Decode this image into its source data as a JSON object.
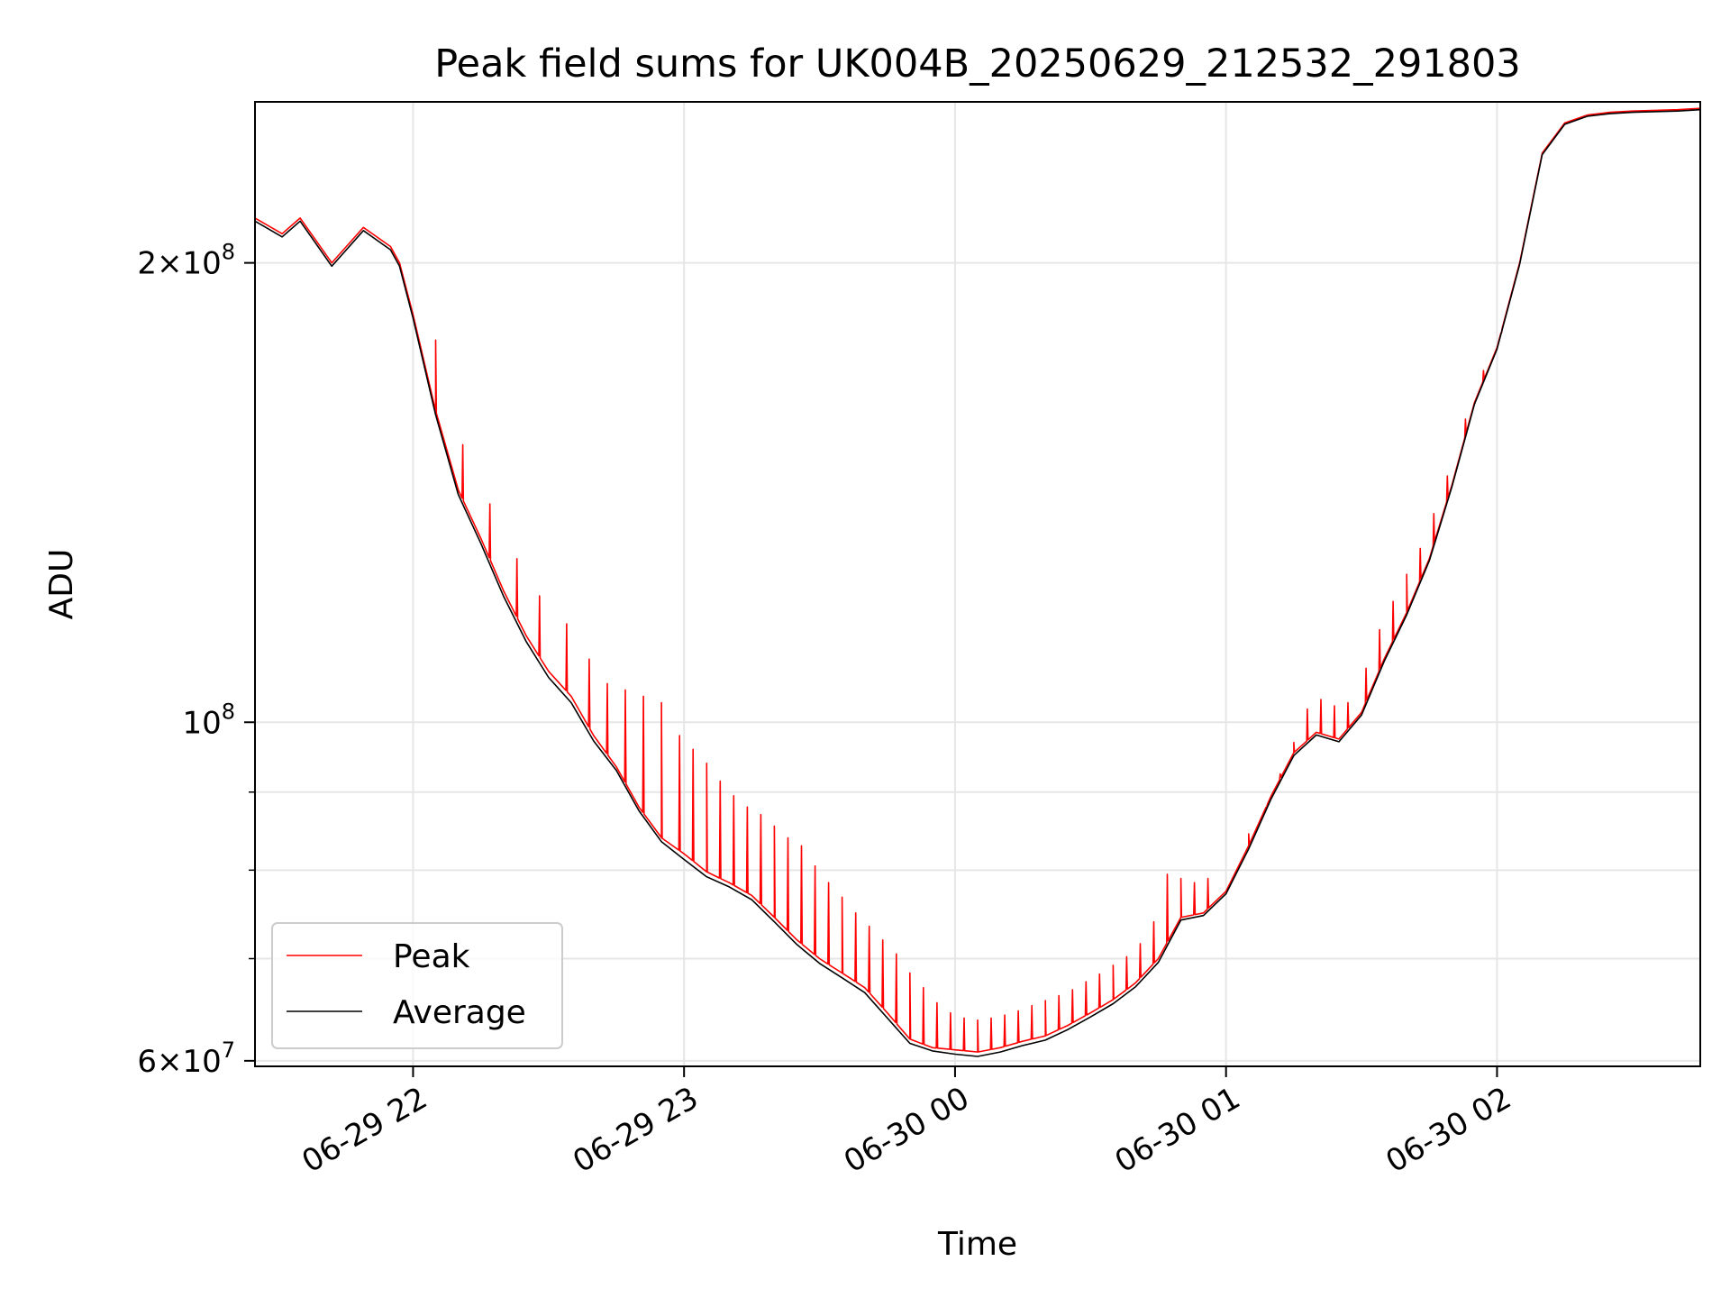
{
  "chart_data": {
    "type": "line",
    "title": "Peak field sums for UK004B_20250629_212532_291803",
    "xlabel": "Time",
    "ylabel": "ADU",
    "y_scale": "log",
    "ylim": [
      59500000,
      255000000
    ],
    "xlim": [
      "06-29 21:25",
      "06-30 02:45"
    ],
    "grid": true,
    "legend_position": "lower-left",
    "x_ticks": [
      {
        "t": "06-29 22:00",
        "label": "06-29 22"
      },
      {
        "t": "06-29 23:00",
        "label": "06-29 23"
      },
      {
        "t": "06-30 00:00",
        "label": "06-30 00"
      },
      {
        "t": "06-30 01:00",
        "label": "06-30 01"
      },
      {
        "t": "06-30 02:00",
        "label": "06-30 02"
      }
    ],
    "y_major_ticks": [
      {
        "value": 60000000,
        "base": "6",
        "exp": "7"
      },
      {
        "value": 100000000,
        "base": "",
        "exp": "8"
      },
      {
        "value": 200000000,
        "base": "2",
        "exp": "8"
      }
    ],
    "y_minor_ticks": [
      70000000,
      80000000,
      90000000
    ],
    "series": [
      {
        "name": "Peak",
        "color": "#ff0000",
        "times": [
          "06-29 21:25",
          "06-29 21:31",
          "06-29 21:35",
          "06-29 21:42",
          "06-29 21:49",
          "06-29 21:55",
          "06-29 21:57",
          "06-29 22:00",
          "06-29 22:05",
          "06-29 22:10",
          "06-29 22:15",
          "06-29 22:20",
          "06-29 22:25",
          "06-29 22:30",
          "06-29 22:35",
          "06-29 22:40",
          "06-29 22:45",
          "06-29 22:50",
          "06-29 22:55",
          "06-29 23:00",
          "06-29 23:05",
          "06-29 23:10",
          "06-29 23:15",
          "06-29 23:20",
          "06-29 23:25",
          "06-29 23:30",
          "06-29 23:35",
          "06-29 23:40",
          "06-29 23:45",
          "06-29 23:50",
          "06-29 23:55",
          "06-30 00:00",
          "06-30 00:05",
          "06-30 00:10",
          "06-30 00:15",
          "06-30 00:20",
          "06-30 00:25",
          "06-30 00:30",
          "06-30 00:35",
          "06-30 00:40",
          "06-30 00:45",
          "06-30 00:50",
          "06-30 00:55",
          "06-30 01:00",
          "06-30 01:05",
          "06-30 01:10",
          "06-30 01:15",
          "06-30 01:20",
          "06-30 01:25",
          "06-30 01:30",
          "06-30 01:35",
          "06-30 01:40",
          "06-30 01:45",
          "06-30 01:50",
          "06-30 01:55",
          "06-30 02:00",
          "06-30 02:05",
          "06-30 02:10",
          "06-30 02:15",
          "06-30 02:20",
          "06-30 02:25",
          "06-30 02:30",
          "06-30 02:40",
          "06-30 02:45"
        ],
        "values": [
          214000000,
          209000000,
          214000000,
          200000000,
          211000000,
          205000000,
          200000000,
          185000000,
          160000000,
          142000000,
          132000000,
          122000000,
          114000000,
          108000000,
          104000000,
          98000000,
          93500000,
          88000000,
          84000000,
          82000000,
          79800000,
          78500000,
          77000000,
          74500000,
          72000000,
          70000000,
          68500000,
          67000000,
          64500000,
          62000000,
          61200000,
          61000000,
          60800000,
          61200000,
          61800000,
          62300000,
          63300000,
          64500000,
          65800000,
          67500000,
          70000000,
          74500000,
          75000000,
          77500000,
          83000000,
          89500000,
          95500000,
          98500000,
          97500000,
          101500000,
          110000000,
          118000000,
          128000000,
          143000000,
          162000000,
          176000000,
          200000000,
          236000000,
          247000000,
          250000000,
          251000000,
          251500000,
          252000000,
          252500000
        ],
        "spikes": [
          [
            "06-29 22:05",
            178000000
          ],
          [
            "06-29 22:11",
            152000000
          ],
          [
            "06-29 22:17",
            139000000
          ],
          [
            "06-29 22:23",
            128000000
          ],
          [
            "06-29 22:28",
            121000000
          ],
          [
            "06-29 22:34",
            116000000
          ],
          [
            "06-29 22:39",
            110000000
          ],
          [
            "06-29 22:43",
            106000000
          ],
          [
            "06-29 22:47",
            105000000
          ],
          [
            "06-29 22:51",
            104000000
          ],
          [
            "06-29 22:55",
            103000000
          ],
          [
            "06-29 22:59",
            98000000
          ],
          [
            "06-29 23:02",
            96000000
          ],
          [
            "06-29 23:05",
            94000000
          ],
          [
            "06-29 23:08",
            91500000
          ],
          [
            "06-29 23:11",
            89500000
          ],
          [
            "06-29 23:14",
            88000000
          ],
          [
            "06-29 23:17",
            87000000
          ],
          [
            "06-29 23:20",
            85500000
          ],
          [
            "06-29 23:23",
            84000000
          ],
          [
            "06-29 23:26",
            83000000
          ],
          [
            "06-29 23:29",
            80500000
          ],
          [
            "06-29 23:32",
            78500000
          ],
          [
            "06-29 23:35",
            76800000
          ],
          [
            "06-29 23:38",
            75000000
          ],
          [
            "06-29 23:41",
            73500000
          ],
          [
            "06-29 23:44",
            72000000
          ],
          [
            "06-29 23:47",
            70500000
          ],
          [
            "06-29 23:50",
            68500000
          ],
          [
            "06-29 23:53",
            67000000
          ],
          [
            "06-29 23:56",
            65500000
          ],
          [
            "06-29 23:59",
            64500000
          ],
          [
            "06-30 00:02",
            64000000
          ],
          [
            "06-30 00:05",
            63800000
          ],
          [
            "06-30 00:08",
            64000000
          ],
          [
            "06-30 00:11",
            64300000
          ],
          [
            "06-30 00:14",
            64700000
          ],
          [
            "06-30 00:17",
            65200000
          ],
          [
            "06-30 00:20",
            65700000
          ],
          [
            "06-30 00:23",
            66200000
          ],
          [
            "06-30 00:26",
            66800000
          ],
          [
            "06-30 00:29",
            67600000
          ],
          [
            "06-30 00:32",
            68400000
          ],
          [
            "06-30 00:35",
            69300000
          ],
          [
            "06-30 00:38",
            70200000
          ],
          [
            "06-30 00:41",
            71600000
          ],
          [
            "06-30 00:44",
            74000000
          ],
          [
            "06-30 00:47",
            79500000
          ],
          [
            "06-30 00:50",
            79000000
          ],
          [
            "06-30 00:53",
            78500000
          ],
          [
            "06-30 00:56",
            79000000
          ],
          [
            "06-30 01:05",
            84500000
          ],
          [
            "06-30 01:09",
            88000000
          ],
          [
            "06-30 01:12",
            92500000
          ],
          [
            "06-30 01:15",
            97000000
          ],
          [
            "06-30 01:18",
            102000000
          ],
          [
            "06-30 01:21",
            103500000
          ],
          [
            "06-30 01:24",
            102500000
          ],
          [
            "06-30 01:27",
            103000000
          ],
          [
            "06-30 01:31",
            108500000
          ],
          [
            "06-30 01:34",
            115000000
          ],
          [
            "06-30 01:37",
            120000000
          ],
          [
            "06-30 01:40",
            125000000
          ],
          [
            "06-30 01:43",
            130000000
          ],
          [
            "06-30 01:46",
            137000000
          ],
          [
            "06-30 01:49",
            145000000
          ],
          [
            "06-30 01:53",
            158000000
          ],
          [
            "06-30 01:57",
            170000000
          ],
          [
            "06-30 02:01",
            180000000
          ]
        ]
      },
      {
        "name": "Average",
        "color": "#000000",
        "times": [
          "06-29 21:25",
          "06-29 21:31",
          "06-29 21:35",
          "06-29 21:42",
          "06-29 21:49",
          "06-29 21:55",
          "06-29 21:57",
          "06-29 22:00",
          "06-29 22:05",
          "06-29 22:10",
          "06-29 22:15",
          "06-29 22:20",
          "06-29 22:25",
          "06-29 22:30",
          "06-29 22:35",
          "06-29 22:40",
          "06-29 22:45",
          "06-29 22:50",
          "06-29 22:55",
          "06-29 23:00",
          "06-29 23:05",
          "06-29 23:10",
          "06-29 23:15",
          "06-29 23:20",
          "06-29 23:25",
          "06-29 23:30",
          "06-29 23:35",
          "06-29 23:40",
          "06-29 23:45",
          "06-29 23:50",
          "06-29 23:55",
          "06-30 00:00",
          "06-30 00:05",
          "06-30 00:10",
          "06-30 00:15",
          "06-30 00:20",
          "06-30 00:25",
          "06-30 00:30",
          "06-30 00:35",
          "06-30 00:40",
          "06-30 00:45",
          "06-30 00:50",
          "06-30 00:55",
          "06-30 01:00",
          "06-30 01:05",
          "06-30 01:10",
          "06-30 01:15",
          "06-30 01:20",
          "06-30 01:25",
          "06-30 01:30",
          "06-30 01:35",
          "06-30 01:40",
          "06-30 01:45",
          "06-30 01:50",
          "06-30 01:55",
          "06-30 02:00",
          "06-30 02:05",
          "06-30 02:10",
          "06-30 02:15",
          "06-30 02:20",
          "06-30 02:25",
          "06-30 02:30",
          "06-30 02:40",
          "06-30 02:45"
        ],
        "values": [
          213000000,
          208000000,
          213000000,
          199000000,
          210000000,
          204000000,
          199000000,
          184000000,
          159000000,
          141000000,
          131000000,
          121000000,
          113000000,
          107000000,
          103000000,
          97200000,
          93000000,
          87500000,
          83500000,
          81300000,
          79200000,
          78000000,
          76500000,
          74000000,
          71500000,
          69500000,
          68000000,
          66500000,
          64000000,
          61600000,
          60900000,
          60600000,
          60400000,
          60800000,
          61400000,
          61900000,
          62900000,
          64100000,
          65400000,
          67100000,
          69600000,
          74200000,
          74700000,
          77200000,
          82600000,
          89100000,
          95100000,
          98100000,
          97100000,
          101100000,
          109600000,
          117600000,
          127600000,
          142600000,
          161600000,
          175600000,
          199500000,
          235500000,
          246500000,
          249500000,
          250500000,
          251000000,
          251500000,
          252000000
        ]
      }
    ]
  }
}
